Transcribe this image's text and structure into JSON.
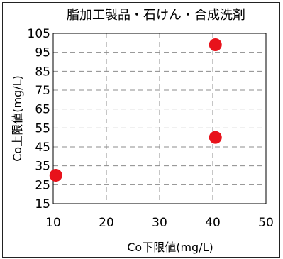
{
  "chart_data": {
    "type": "scatter",
    "title": "脂加工製品・石けん・合成洗剤",
    "xlabel": "Co下限値(mg/L)",
    "ylabel": "Co上限値(mg/L)",
    "xlim": [
      10,
      50
    ],
    "ylim": [
      15,
      105
    ],
    "xticks": [
      "10",
      "20",
      "30",
      "40",
      "50"
    ],
    "yticks": [
      "105",
      "95",
      "85",
      "75",
      "65",
      "55",
      "45",
      "35",
      "25",
      "15"
    ],
    "grid": true,
    "points": [
      {
        "x": 10.5,
        "y": 30
      },
      {
        "x": 40.5,
        "y": 99
      },
      {
        "x": 40.5,
        "y": 50
      }
    ],
    "marker_color": "#e8121b"
  }
}
